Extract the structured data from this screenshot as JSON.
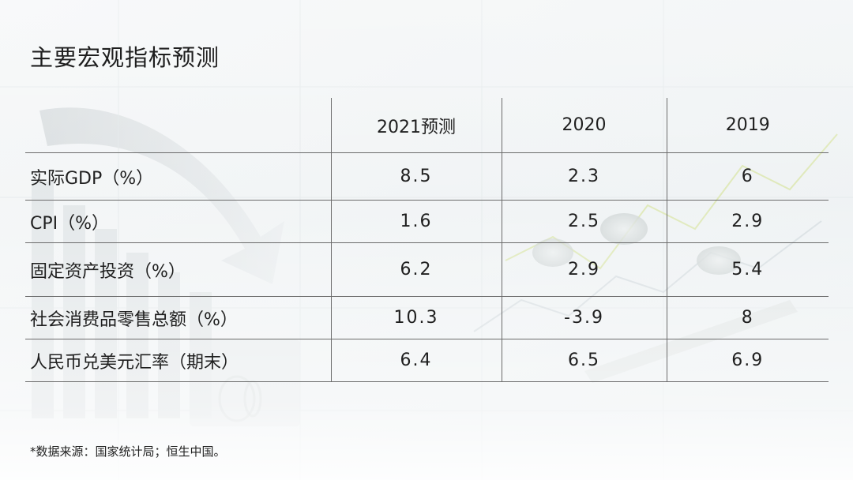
{
  "title": "主要宏观指标预测",
  "table": {
    "headers": [
      "",
      "2021预测",
      "2020",
      "2019"
    ],
    "rows": [
      {
        "label": "实际GDP（%）",
        "v2021": "8.5",
        "v2020": "2.3",
        "v2019": "6"
      },
      {
        "label": "CPI（%）",
        "v2021": "1.6",
        "v2020": "2.5",
        "v2019": "2.9"
      },
      {
        "label": "固定资产投资（%）",
        "v2021": "6.2",
        "v2020": "2.9",
        "v2019": "5.4"
      },
      {
        "label": "社会消费品零售总额（%）",
        "v2021": "10.3",
        "v2020": "-3.9",
        "v2019": "8"
      },
      {
        "label": "人民币兑美元汇率（期末）",
        "v2021": "6.4",
        "v2020": "6.5",
        "v2019": "6.9"
      }
    ]
  },
  "footnote": "*数据来源：国家统计局；恒生中国。"
}
